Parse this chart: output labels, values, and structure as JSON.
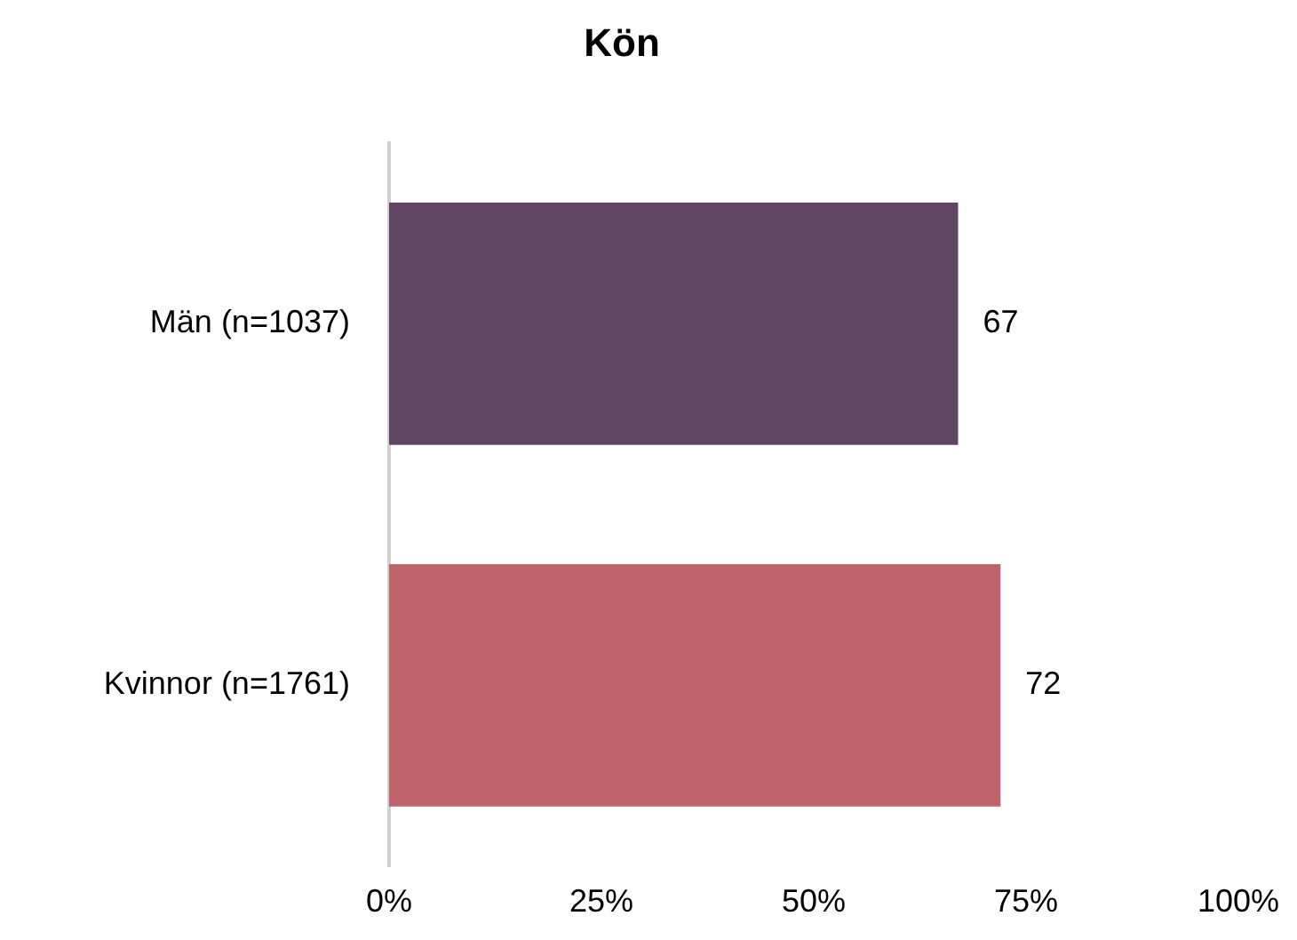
{
  "chart_data": {
    "type": "bar",
    "orientation": "horizontal",
    "title": "Kön",
    "categories": [
      "Män (n=1037)",
      "Kvinnor (n=1761)"
    ],
    "values": [
      67,
      72
    ],
    "colors": [
      "#604663",
      "#c0646c"
    ],
    "xlim": [
      0,
      100
    ],
    "xticks": [
      {
        "value": 0,
        "label": "0%"
      },
      {
        "value": 25,
        "label": "25%"
      },
      {
        "value": 50,
        "label": "50%"
      },
      {
        "value": 75,
        "label": "75%"
      },
      {
        "value": 100,
        "label": "100%"
      }
    ],
    "data_labels": true,
    "grid": false,
    "legend": false
  }
}
